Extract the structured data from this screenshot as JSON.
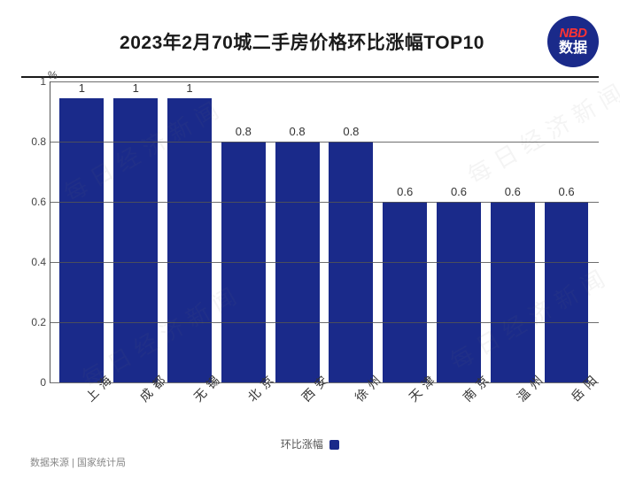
{
  "title": "2023年2月70城二手房价格环比涨幅TOP10",
  "logo": {
    "top": "NBD",
    "bottom": "数据"
  },
  "chart": {
    "type": "bar",
    "y_unit": "%",
    "ylim": [
      0,
      1
    ],
    "yticks": [
      0,
      0.2,
      0.4,
      0.6,
      0.8,
      1
    ],
    "categories": [
      "上海",
      "成都",
      "无锡",
      "北京",
      "西安",
      "徐州",
      "天津",
      "南京",
      "温州",
      "岳阳"
    ],
    "values": [
      1,
      1,
      1,
      0.8,
      0.8,
      0.8,
      0.6,
      0.6,
      0.6,
      0.6
    ],
    "bar_color": "#1a2a8a",
    "grid_color": "#555555",
    "background_color": "#ffffff",
    "bar_width": 0.82,
    "value_fontsize": 13,
    "axis_fontsize": 12,
    "category_fontsize": 14,
    "category_rotation_deg": -45
  },
  "legend": {
    "label": "环比涨幅",
    "color": "#1a2a8a"
  },
  "source": "数据来源 | 国家统计局",
  "watermark": "每日经济新闻"
}
